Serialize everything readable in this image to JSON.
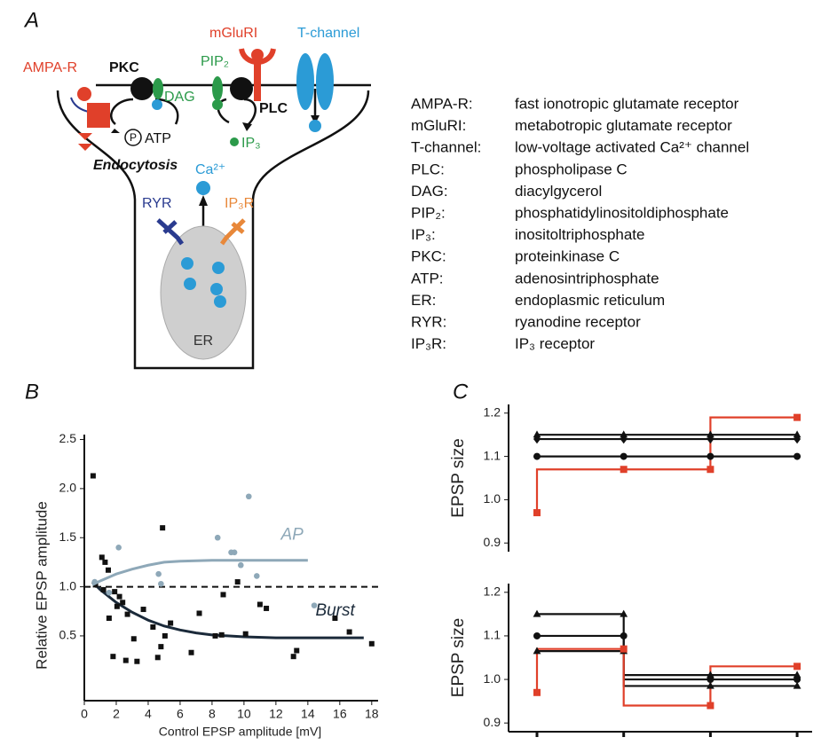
{
  "panel_a": {
    "label": "A",
    "diagram": {
      "ampa": "AMPA-R",
      "pkc": "PKC",
      "mglur": "mGluRI",
      "tchannel": "T-channel",
      "pip2": "PIP₂",
      "dag": "DAG",
      "plc": "PLC",
      "atp": "ATP",
      "p": "P",
      "ip3": "IP₃",
      "endocytosis": "Endocytosis",
      "ca": "Ca²⁺",
      "ryr": "RYR",
      "ip3r": "IP₃R",
      "er": "ER"
    },
    "glossary": [
      {
        "term": "AMPA-R:",
        "definition": "fast ionotropic glutamate receptor"
      },
      {
        "term": "mGluRI:",
        "definition": "metabotropic glutamate receptor"
      },
      {
        "term": "T-channel:",
        "definition": "low-voltage activated Ca²⁺ channel"
      },
      {
        "term": "PLC:",
        "definition": "phospholipase C"
      },
      {
        "term": "DAG:",
        "definition": "diacylgycerol"
      },
      {
        "term": "PIP₂:",
        "definition": "phosphatidylinositoldiphosphate"
      },
      {
        "term": "IP₃:",
        "definition": "inositoltriphosphate"
      },
      {
        "term": "PKC:",
        "definition": "proteinkinase C"
      },
      {
        "term": "ATP:",
        "definition": "adenosintriphosphate"
      },
      {
        "term": "ER:",
        "definition": "endoplasmic reticulum"
      },
      {
        "term": "RYR:",
        "definition": "ryanodine receptor"
      },
      {
        "term": "IP₃R:",
        "definition": "IP₃ receptor"
      }
    ]
  },
  "chart_data": [
    {
      "type": "scatter",
      "panel": "B",
      "xlabel": "Control EPSP amplitude [mV]",
      "ylabel": "Relative EPSP amplitude",
      "xlim": [
        0,
        18.4
      ],
      "xticks": [
        0,
        2,
        4,
        6,
        8,
        10,
        12,
        14,
        16,
        18
      ],
      "ylim": [
        -0.16,
        2.55
      ],
      "yticks": [
        0.5,
        {
          "value": 1.0,
          "label": "1.0"
        },
        1.5,
        {
          "value": 2.0,
          "label": "2.0"
        },
        2.5
      ],
      "reference_line": 1.0,
      "series": [
        {
          "name": "Burst",
          "color": "#111111",
          "marker": "square",
          "x": [
            0.55,
            0.7,
            1.1,
            1.3,
            1.5,
            1.2,
            1.55,
            1.8,
            1.9,
            2.2,
            2.4,
            2.05,
            2.7,
            2.6,
            3.1,
            3.3,
            3.7,
            4.3,
            4.6,
            4.8,
            4.9,
            5.05,
            5.4,
            6.7,
            7.2,
            8.2,
            8.6,
            8.7,
            9.6,
            10.1,
            11.0,
            11.4,
            13.1,
            13.3,
            15.7,
            16.6,
            18.0
          ],
          "values": [
            2.13,
            1.02,
            1.3,
            1.25,
            1.17,
            0.97,
            0.68,
            0.29,
            0.95,
            0.9,
            0.84,
            0.8,
            0.72,
            0.25,
            0.47,
            0.24,
            0.77,
            0.59,
            0.28,
            0.39,
            1.6,
            0.5,
            0.63,
            0.33,
            0.73,
            0.5,
            0.51,
            0.92,
            1.05,
            0.52,
            0.82,
            0.78,
            0.29,
            0.35,
            0.68,
            0.54,
            0.42
          ],
          "fit": {
            "x": [
              0.5,
              1,
              2,
              3,
              4,
              5,
              6,
              7,
              8,
              10,
              12,
              14,
              16,
              17.5
            ],
            "values": [
              1.05,
              0.97,
              0.84,
              0.74,
              0.66,
              0.6,
              0.56,
              0.53,
              0.51,
              0.49,
              0.48,
              0.48,
              0.48,
              0.48
            ]
          }
        },
        {
          "name": "AP",
          "color": "#8ea8b8",
          "marker": "circle",
          "x": [
            0.65,
            2.15,
            1.55,
            4.65,
            4.8,
            8.35,
            9.2,
            9.4,
            10.3,
            10.8,
            9.8,
            14.4
          ],
          "values": [
            1.05,
            1.4,
            0.94,
            1.13,
            1.03,
            1.5,
            1.35,
            1.35,
            1.92,
            1.11,
            1.22,
            0.81
          ],
          "fit": {
            "x": [
              0.5,
              1,
              2,
              3,
              4,
              5,
              6,
              8,
              10,
              12,
              14
            ],
            "values": [
              1.02,
              1.06,
              1.13,
              1.18,
              1.22,
              1.25,
              1.26,
              1.27,
              1.27,
              1.27,
              1.27
            ]
          }
        }
      ]
    },
    {
      "type": "step",
      "panel": "C",
      "ylabel": "EPSP size",
      "categories": [
        null,
        null,
        null,
        null
      ],
      "ylim": [
        0.88,
        1.22
      ],
      "yticks": [
        0.9,
        {
          "value": 1.0,
          "label": "1.0"
        },
        1.1,
        1.2
      ],
      "series": [
        {
          "color": "#111111",
          "marker": "triangle",
          "values": [
            1.15,
            1.15,
            1.15,
            1.15
          ]
        },
        {
          "color": "#111111",
          "marker": "diamond",
          "values": [
            1.14,
            1.14,
            1.14,
            1.14
          ]
        },
        {
          "color": "#111111",
          "marker": "circle",
          "values": [
            1.1,
            1.1,
            1.1,
            1.1
          ]
        },
        {
          "color": "#e0402a",
          "marker": "square",
          "values": [
            0.97,
            1.07,
            1.07,
            1.19
          ]
        }
      ]
    },
    {
      "type": "step",
      "ylabel": "EPSP size",
      "categories": [
        null,
        null,
        null,
        null
      ],
      "ylim": [
        0.88,
        1.22
      ],
      "yticks": [
        0.9,
        {
          "value": 1.0,
          "label": "1.0"
        },
        1.1,
        1.2
      ],
      "series": [
        {
          "color": "#111111",
          "marker": "triangle",
          "values": [
            1.15,
            1.15,
            0.985,
            0.985
          ]
        },
        {
          "color": "#111111",
          "marker": "circle",
          "values": [
            1.1,
            1.1,
            1.0,
            1.0
          ]
        },
        {
          "color": "#111111",
          "marker": "triangle",
          "values": [
            1.065,
            1.065,
            1.01,
            1.01
          ]
        },
        {
          "color": "#e0402a",
          "marker": "square",
          "values": [
            0.97,
            1.07,
            0.94,
            1.03
          ]
        }
      ]
    }
  ]
}
